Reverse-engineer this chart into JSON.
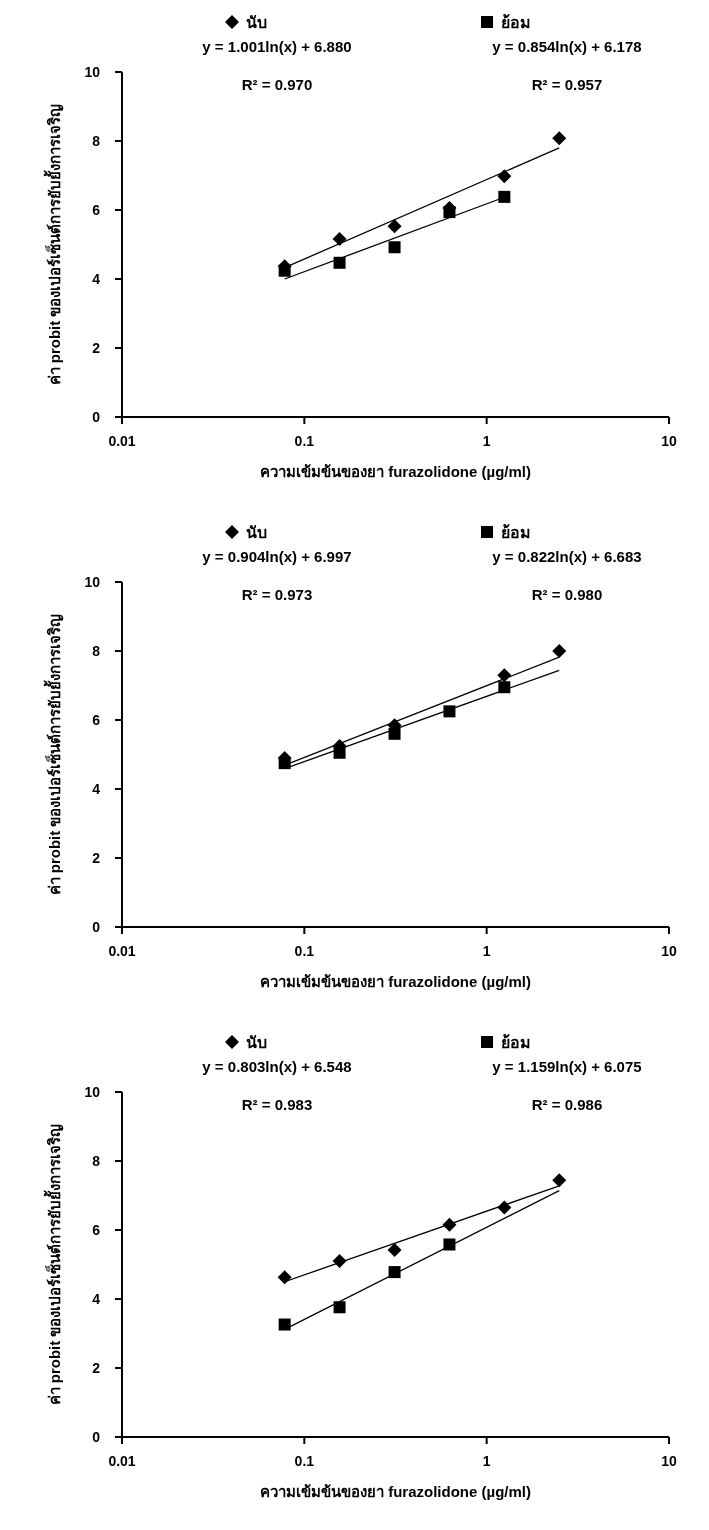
{
  "chart_data": [
    {
      "type": "scatter",
      "xlabel": "ความเข้มข้นของยา furazolidone (µg/ml)",
      "ylabel": "ค่า probit ของเปอร์เซ็นต์การยับยั้งการเจริญ",
      "log": "x",
      "xlim": [
        0.01,
        10
      ],
      "xticks": [
        0.01,
        0.1,
        1,
        10
      ],
      "ylim": [
        0,
        10
      ],
      "yticks": [
        0,
        2,
        4,
        6,
        8,
        10
      ],
      "grid": false,
      "legend": "top",
      "x": [
        0.078,
        0.156,
        0.3125,
        0.625,
        1.25,
        2.5
      ],
      "series": [
        {
          "name": "นับ",
          "color": "#000000",
          "marker": "diamond",
          "values": [
            4.37,
            5.16,
            5.53,
            6.06,
            6.98,
            8.08
          ]
        },
        {
          "name": "ย้อม",
          "color": "#000000",
          "marker": "square",
          "values": [
            4.24,
            4.47,
            4.92,
            5.94,
            6.38,
            null
          ]
        },
        {
          "type": "line",
          "color": "#000000",
          "x": [
            0.078,
            2.5
          ],
          "values": [
            4.33,
            7.8
          ]
        },
        {
          "type": "line",
          "color": "#000000",
          "x": [
            0.078,
            1.25
          ],
          "values": [
            4.0,
            6.37
          ]
        }
      ],
      "annotations": [
        "y = 1.001ln(x) + 6.880",
        "R² = 0.970",
        "y = 0.854ln(x) + 6.178",
        "R² = 0.957"
      ]
    },
    {
      "type": "scatter",
      "xlabel": "ความเข้มข้นของยา furazolidone (µg/ml)",
      "ylabel": "ค่า probit ของเปอร์เซ็นต์การยับยั้งการเจริญ",
      "log": "x",
      "xlim": [
        0.01,
        10
      ],
      "xticks": [
        0.01,
        0.1,
        1,
        10
      ],
      "ylim": [
        0,
        10
      ],
      "yticks": [
        0,
        2,
        4,
        6,
        8,
        10
      ],
      "grid": false,
      "legend": "top",
      "x": [
        0.078,
        0.156,
        0.3125,
        0.625,
        1.25,
        2.5
      ],
      "series": [
        {
          "name": "นับ",
          "color": "#000000",
          "marker": "diamond",
          "values": [
            4.9,
            5.25,
            5.85,
            null,
            7.3,
            8.0
          ]
        },
        {
          "name": "ย้อม",
          "color": "#000000",
          "marker": "square",
          "values": [
            4.75,
            5.05,
            5.6,
            6.25,
            6.95,
            null
          ]
        },
        {
          "type": "line",
          "color": "#000000",
          "x": [
            0.078,
            2.5
          ],
          "values": [
            4.69,
            7.82
          ]
        },
        {
          "type": "line",
          "color": "#000000",
          "x": [
            0.078,
            2.5
          ],
          "values": [
            4.59,
            7.44
          ]
        }
      ],
      "annotations": [
        "y = 0.904ln(x) + 6.997",
        "R² = 0.973",
        "y = 0.822ln(x) + 6.683",
        "R² = 0.980"
      ]
    },
    {
      "type": "scatter",
      "xlabel": "ความเข้มข้นของยา furazolidone (µg/ml)",
      "ylabel": "ค่า probit ของเปอร์เซ็นต์การยับยั้งการเจริญ",
      "log": "x",
      "xlim": [
        0.01,
        10
      ],
      "xticks": [
        0.01,
        0.1,
        1,
        10
      ],
      "ylim": [
        0,
        10
      ],
      "yticks": [
        0,
        2,
        4,
        6,
        8,
        10
      ],
      "grid": false,
      "legend": "top",
      "x": [
        0.078,
        0.156,
        0.3125,
        0.625,
        1.25,
        2.5
      ],
      "series": [
        {
          "name": "นับ",
          "color": "#000000",
          "marker": "diamond",
          "values": [
            4.63,
            5.1,
            5.42,
            6.15,
            6.65,
            7.44
          ]
        },
        {
          "name": "ย้อม",
          "color": "#000000",
          "marker": "square",
          "values": [
            3.26,
            3.76,
            4.78,
            5.58,
            null,
            null
          ]
        },
        {
          "type": "line",
          "color": "#000000",
          "x": [
            0.078,
            2.5
          ],
          "values": [
            4.5,
            7.28
          ]
        },
        {
          "type": "line",
          "color": "#000000",
          "x": [
            0.078,
            2.5
          ],
          "values": [
            3.12,
            7.14
          ]
        }
      ],
      "annotations": [
        "y = 0.803ln(x) + 6.548",
        "R² = 0.983",
        "y = 1.159ln(x) + 6.075",
        "R² = 0.986"
      ]
    }
  ]
}
